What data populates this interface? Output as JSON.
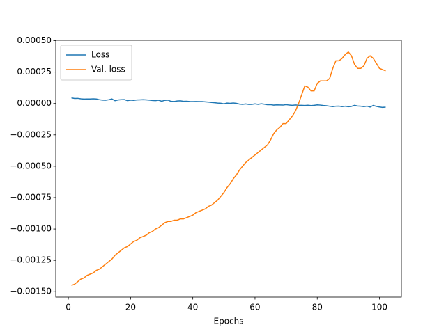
{
  "chart_data": {
    "type": "line",
    "xlabel": "Epochs",
    "x": [
      1,
      2,
      3,
      4,
      5,
      6,
      7,
      8,
      9,
      10,
      11,
      12,
      13,
      14,
      15,
      16,
      17,
      18,
      19,
      20,
      21,
      22,
      23,
      24,
      25,
      26,
      27,
      28,
      29,
      30,
      31,
      32,
      33,
      34,
      35,
      36,
      37,
      38,
      39,
      40,
      41,
      42,
      43,
      44,
      45,
      46,
      47,
      48,
      49,
      50,
      51,
      52,
      53,
      54,
      55,
      56,
      57,
      58,
      59,
      60,
      61,
      62,
      63,
      64,
      65,
      66,
      67,
      68,
      69,
      70,
      71,
      72,
      73,
      74,
      75,
      76,
      77,
      78,
      79,
      80,
      81,
      82,
      83,
      84,
      85,
      86,
      87,
      88,
      89,
      90,
      91,
      92,
      93,
      94,
      95,
      96,
      97,
      98,
      99,
      100,
      101,
      102
    ],
    "series": [
      {
        "name": "Loss",
        "color": "#1f77b4",
        "values": [
          4.5e-05,
          4e-05,
          4.1e-05,
          3.7e-05,
          3.5e-05,
          3.6e-05,
          3.6e-05,
          3.7e-05,
          3.6e-05,
          3e-05,
          2.7e-05,
          2.6e-05,
          3e-05,
          3.6e-05,
          2.2e-05,
          2.8e-05,
          3e-05,
          3.1e-05,
          2.3e-05,
          2.7e-05,
          2.5e-05,
          2.8e-05,
          2.9e-05,
          3e-05,
          2.9e-05,
          2.7e-05,
          2.4e-05,
          2.3e-05,
          2.6e-05,
          1.8e-05,
          2.5e-05,
          2.7e-05,
          1.7e-05,
          1.6e-05,
          2e-05,
          2.1e-05,
          1.7e-05,
          1.8e-05,
          1.6e-05,
          1.5e-05,
          1.6e-05,
          1.5e-05,
          1.5e-05,
          1.3e-05,
          1.1e-05,
          8e-06,
          6e-06,
          3e-06,
          2e-06,
          -3e-06,
          3e-06,
          1e-06,
          4e-06,
          1e-06,
          -5e-06,
          -7e-06,
          -4e-06,
          -8e-06,
          -7e-06,
          -3e-06,
          -7e-06,
          -2e-06,
          -6e-06,
          -1e-05,
          -9e-06,
          -1.3e-05,
          -1.1e-05,
          -1.2e-05,
          -1.3e-05,
          -9e-06,
          -1.3e-05,
          -1.5e-05,
          -1.2e-05,
          -1.4e-05,
          -1.5e-05,
          -1.6e-05,
          -1.4e-05,
          -1.7e-05,
          -1.5e-05,
          -1.1e-05,
          -1.3e-05,
          -1.6e-05,
          -1.8e-05,
          -2.2e-05,
          -2.5e-05,
          -2.2e-05,
          -2.1e-05,
          -2.5e-05,
          -2.2e-05,
          -2.6e-05,
          -2.3e-05,
          -1.5e-05,
          -2e-05,
          -2.2e-05,
          -2.5e-05,
          -2.1e-05,
          -2.8e-05,
          -1.6e-05,
          -2.3e-05,
          -2.8e-05,
          -3.1e-05,
          -2.9e-05
        ]
      },
      {
        "name": "Val. loss",
        "color": "#ff7f0e",
        "values": [
          -0.00145,
          -0.00144,
          -0.00142,
          -0.0014,
          -0.00139,
          -0.00137,
          -0.00136,
          -0.00135,
          -0.00133,
          -0.00132,
          -0.0013,
          -0.00128,
          -0.00126,
          -0.00124,
          -0.00121,
          -0.00119,
          -0.00117,
          -0.00115,
          -0.00114,
          -0.00112,
          -0.0011,
          -0.00109,
          -0.00107,
          -0.00106,
          -0.00105,
          -0.00103,
          -0.00102,
          -0.001,
          -0.00099,
          -0.00097,
          -0.00095,
          -0.00094,
          -0.00094,
          -0.00093,
          -0.00093,
          -0.00092,
          -0.00092,
          -0.00091,
          -0.0009,
          -0.00089,
          -0.00087,
          -0.00086,
          -0.00085,
          -0.00084,
          -0.00082,
          -0.00081,
          -0.00079,
          -0.00077,
          -0.00074,
          -0.00071,
          -0.00067,
          -0.00064,
          -0.0006,
          -0.00057,
          -0.00053,
          -0.0005,
          -0.00047,
          -0.00045,
          -0.00043,
          -0.00041,
          -0.00039,
          -0.00037,
          -0.00035,
          -0.00033,
          -0.00029,
          -0.00024,
          -0.00021,
          -0.00019,
          -0.00016,
          -0.00016,
          -0.00013,
          -0.0001,
          -6e-05,
          0.0,
          7e-05,
          0.00014,
          0.00013,
          0.0001,
          0.0001,
          0.00016,
          0.00018,
          0.00018,
          0.00018,
          0.0002,
          0.00028,
          0.00034,
          0.00034,
          0.00036,
          0.00039,
          0.00041,
          0.00038,
          0.00031,
          0.00028,
          0.00028,
          0.0003,
          0.00036,
          0.00038,
          0.00036,
          0.00032,
          0.00028,
          0.00027,
          0.00026
        ]
      }
    ],
    "xlim": [
      -4.05,
      107.05
    ],
    "xticks": [
      0,
      20,
      40,
      60,
      80,
      100
    ],
    "ylim": [
      -0.001543,
      0.000503
    ],
    "yticks": [
      {
        "value": -0.0015,
        "label": "−0.00150"
      },
      {
        "value": -0.00125,
        "label": "−0.00125"
      },
      {
        "value": -0.001,
        "label": "−0.00100"
      },
      {
        "value": -0.00075,
        "label": "−0.00075"
      },
      {
        "value": -0.0005,
        "label": "−0.00050"
      },
      {
        "value": -0.00025,
        "label": "−0.00025"
      },
      {
        "value": 0,
        "label": "0.00000"
      },
      {
        "value": 0.00025,
        "label": "0.00025"
      },
      {
        "value": 0.0005,
        "label": "0.00050"
      }
    ],
    "grid": false,
    "legend": "upper left"
  }
}
